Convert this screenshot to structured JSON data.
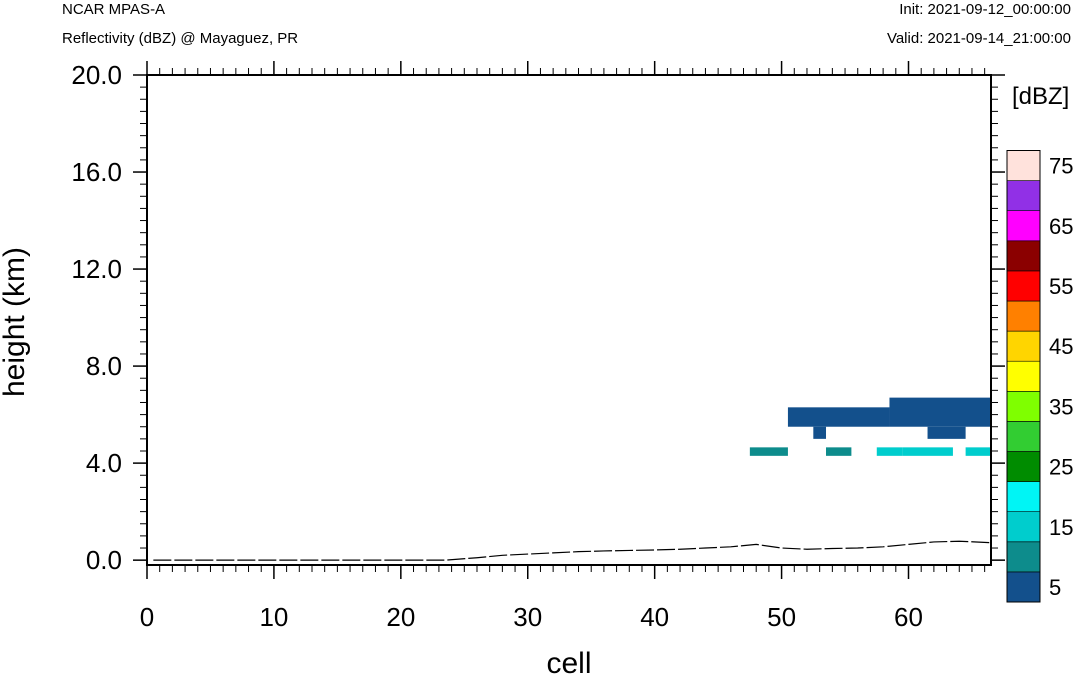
{
  "header": {
    "left_top": "NCAR MPAS-A",
    "left_bottom": "Reflectivity (dBZ) @ Mayaguez, PR",
    "right_top": "Init: 2021-09-12_00:00:00",
    "right_bottom": "Valid: 2021-09-14_21:00:00"
  },
  "chart_data": {
    "type": "heatmap",
    "xlabel": "cell",
    "ylabel": "height (km)",
    "xlim": [
      0,
      66.5
    ],
    "ylim": [
      -0.2,
      20.0
    ],
    "x_ticks": [
      0,
      10,
      20,
      30,
      40,
      50,
      60
    ],
    "x_tick_labels": [
      "0",
      "10",
      "20",
      "30",
      "40",
      "50",
      "60"
    ],
    "y_ticks": [
      0,
      4,
      8,
      12,
      16,
      20
    ],
    "y_tick_labels": [
      "0.0",
      "4.0",
      "8.0",
      "12.0",
      "16.0",
      "20.0"
    ],
    "colorbar": {
      "title": "[dBZ]",
      "levels": [
        5,
        10,
        15,
        20,
        25,
        30,
        35,
        40,
        45,
        50,
        55,
        60,
        65,
        70,
        75
      ],
      "labels": [
        "5",
        "15",
        "25",
        "35",
        "45",
        "55",
        "65",
        "75"
      ],
      "colors": [
        "#13508c",
        "#0d8c8c",
        "#00cdcd",
        "#00f5f5",
        "#008c00",
        "#32cd32",
        "#7fff00",
        "#ffff00",
        "#ffd500",
        "#ff8000",
        "#ff0000",
        "#8b0000",
        "#ff00ff",
        "#9130e6",
        "#ffe2dc"
      ]
    },
    "cells": [
      {
        "x0": 50.5,
        "x1": 58.5,
        "y0": 5.5,
        "y1": 6.3,
        "dbz": 5
      },
      {
        "x0": 58.5,
        "x1": 66.5,
        "y0": 5.5,
        "y1": 6.7,
        "dbz": 5
      },
      {
        "x0": 52.5,
        "x1": 53.5,
        "y0": 5.0,
        "y1": 5.5,
        "dbz": 5
      },
      {
        "x0": 61.5,
        "x1": 64.5,
        "y0": 5.0,
        "y1": 5.5,
        "dbz": 5
      },
      {
        "x0": 47.5,
        "x1": 50.5,
        "y0": 4.3,
        "y1": 4.65,
        "dbz": 10
      },
      {
        "x0": 53.5,
        "x1": 55.5,
        "y0": 4.3,
        "y1": 4.65,
        "dbz": 10
      },
      {
        "x0": 57.5,
        "x1": 59.5,
        "y0": 4.3,
        "y1": 4.65,
        "dbz": 15
      },
      {
        "x0": 59.5,
        "x1": 63.5,
        "y0": 4.3,
        "y1": 4.65,
        "dbz": 15
      },
      {
        "x0": 64.5,
        "x1": 66.5,
        "y0": 4.3,
        "y1": 4.65,
        "dbz": 15
      }
    ],
    "terrain": {
      "x": [
        0.5,
        23.5,
        26,
        28,
        30,
        32,
        34,
        36,
        38,
        40,
        42,
        44,
        46,
        48,
        50,
        52,
        54,
        56,
        58,
        60,
        62,
        64,
        66.5
      ],
      "y": [
        0.0,
        0.0,
        0.1,
        0.2,
        0.25,
        0.3,
        0.35,
        0.38,
        0.4,
        0.42,
        0.45,
        0.5,
        0.55,
        0.65,
        0.5,
        0.45,
        0.48,
        0.5,
        0.55,
        0.65,
        0.75,
        0.78,
        0.72
      ]
    }
  }
}
